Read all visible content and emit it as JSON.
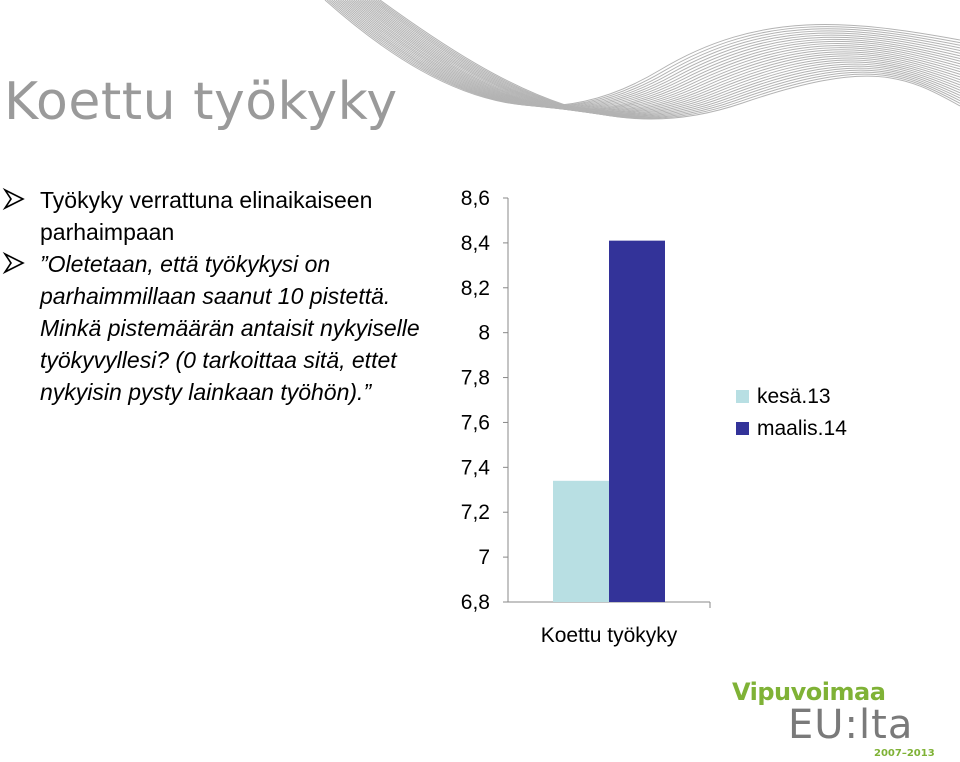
{
  "slide": {
    "title": "Koettu työkyky",
    "bullets": [
      {
        "text": "Työkyky verrattuna elinaikaiseen parhaimpaan",
        "italic": false
      },
      {
        "text": "”Oletetaan, että työkykysi on parhaimmillaan saanut 10 pistettä. Minkä pistemäärän antaisit nykyiselle työkyvyllesi? (0 tarkoittaa sitä, ettet nykyisin pysty lainkaan työhön).”",
        "italic": true
      }
    ],
    "bullet_icon": "arrow-bullet-icon"
  },
  "chart_data": {
    "type": "bar",
    "categories": [
      "Koettu työkyky"
    ],
    "series": [
      {
        "name": "kesä.13",
        "values": [
          7.34
        ],
        "color": "#b8dfe3"
      },
      {
        "name": "maalis.14",
        "values": [
          8.41
        ],
        "color": "#333399"
      }
    ],
    "ylim": [
      6.8,
      8.6
    ],
    "yticks": [
      "8,6",
      "8,4",
      "8,2",
      "8",
      "7,8",
      "7,6",
      "7,4",
      "7,2",
      "7",
      "6,8"
    ],
    "grid": false,
    "legend_position": "right"
  },
  "logo": {
    "line1": "Vipuvoimaa",
    "line2": "EU:lta",
    "years": "2007–2013",
    "color_green": "#7fb236",
    "color_grey": "#7a7a7a"
  }
}
